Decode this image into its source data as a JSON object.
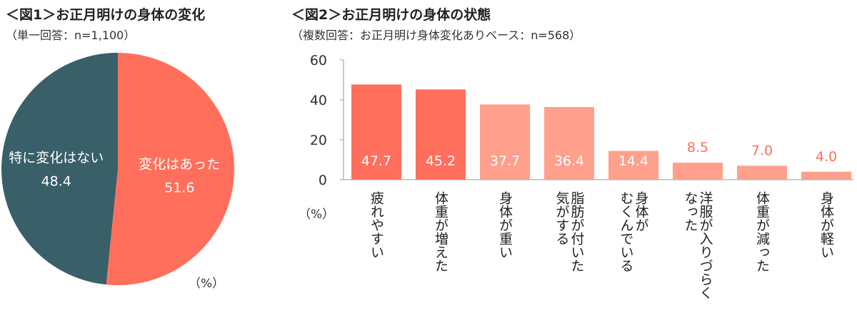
{
  "figure1": {
    "title": "＜図1＞お正月明けの身体の変化",
    "subtitle": "（単一回答：n=1,100）",
    "unit": "（%）"
  },
  "figure2": {
    "title": "＜図2＞お正月明けの身体の状態",
    "subtitle": "（複数回答：お正月明け身体変化ありベース：n=568）",
    "unit": "（%）"
  },
  "chart_data": [
    {
      "type": "pie",
      "title": "＜図1＞お正月明けの身体の変化",
      "categories": [
        "変化はあった",
        "特に変化はない"
      ],
      "values": [
        51.6,
        48.4
      ],
      "value_labels": [
        "51.6",
        "48.4"
      ],
      "colors": [
        "#ff6f5c",
        "#395f69"
      ],
      "start": "top",
      "direction": "clockwise"
    },
    {
      "type": "bar",
      "title": "＜図2＞お正月明けの身体の状態",
      "categories": [
        "疲れやすい",
        "体重が増えた",
        "身体が重い",
        "脂肪が付いた気がする",
        "身体がむくんでいる",
        "洋服が入りづらくなった",
        "体重が減った",
        "身体が軽い"
      ],
      "category_lines": [
        [
          "疲れやすい"
        ],
        [
          "体重が増えた"
        ],
        [
          "身体が重い"
        ],
        [
          "脂肪が付いた",
          "気がする"
        ],
        [
          "身体が",
          "むくんでいる"
        ],
        [
          "洋服が入りづらく",
          "なった"
        ],
        [
          "体重が減った"
        ],
        [
          "身体が軽い"
        ]
      ],
      "values": [
        47.7,
        45.2,
        37.7,
        36.4,
        14.4,
        8.5,
        7.0,
        4.0
      ],
      "value_labels": [
        "47.7",
        "45.2",
        "37.7",
        "36.4",
        "14.4",
        "8.5",
        "7.0",
        "4.0"
      ],
      "colors": [
        "#ff6f5c",
        "#ff6f5c",
        "#ffa08c",
        "#ffa08c",
        "#ffa08c",
        "#ffa08c",
        "#ffa08c",
        "#ffa08c"
      ],
      "label_text_color": "#ff6f5c",
      "y_ticks": [
        "0",
        "20",
        "40",
        "60"
      ],
      "ylim": [
        0,
        60
      ],
      "ylabel": "（%）",
      "grid": false
    }
  ]
}
